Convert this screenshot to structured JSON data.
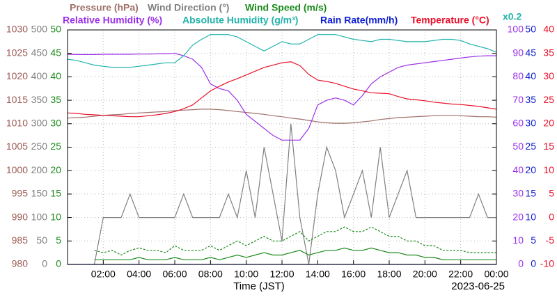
{
  "chart_data": {
    "type": "line",
    "xlabel": "Time (JST)",
    "date": "2023-06-25",
    "grid": true,
    "xlim": [
      0,
      24
    ],
    "xticks": [
      {
        "value": 2,
        "label": "02:00"
      },
      {
        "value": 4,
        "label": "04:00"
      },
      {
        "value": 6,
        "label": "06:00"
      },
      {
        "value": 8,
        "label": "08:00"
      },
      {
        "value": 10,
        "label": "10:00"
      },
      {
        "value": 12,
        "label": "12:00"
      },
      {
        "value": 14,
        "label": "14:00"
      },
      {
        "value": 16,
        "label": "16:00"
      },
      {
        "value": 18,
        "label": "18:00"
      },
      {
        "value": 20,
        "label": "20:00"
      },
      {
        "value": 22,
        "label": "22:00"
      },
      {
        "value": 24,
        "label": "00:00"
      }
    ],
    "x": [
      0,
      0.5,
      1,
      1.5,
      2,
      2.5,
      3,
      3.5,
      4,
      4.5,
      5,
      5.5,
      6,
      6.5,
      7,
      7.5,
      8,
      8.5,
      9,
      9.5,
      10,
      10.5,
      11,
      11.5,
      12,
      12.5,
      13,
      13.5,
      14,
      14.5,
      15,
      15.5,
      16,
      16.5,
      17,
      17.5,
      18,
      18.5,
      19,
      19.5,
      20,
      20.5,
      21,
      21.5,
      22,
      22.5,
      23,
      23.5,
      24
    ],
    "axes": [
      {
        "side": "left",
        "color": "#9c5b55",
        "lim": [
          980,
          1030
        ],
        "ticks": [
          980,
          985,
          990,
          995,
          1000,
          1005,
          1010,
          1015,
          1020,
          1025,
          1030
        ]
      },
      {
        "side": "left",
        "color": "#808080",
        "lim": [
          0,
          500
        ],
        "ticks": [
          0,
          50,
          100,
          150,
          200,
          250,
          300,
          350,
          400,
          450,
          500
        ]
      },
      {
        "side": "left",
        "color": "#1a8a1a",
        "lim": [
          0,
          50
        ],
        "ticks": [
          0,
          5,
          10,
          15,
          20,
          25,
          30,
          35,
          40,
          45,
          50
        ]
      },
      {
        "side": "right",
        "color": "#9b30e8",
        "lim": [
          0,
          100
        ],
        "ticks": [
          0,
          10,
          20,
          30,
          40,
          50,
          60,
          70,
          80,
          90,
          100
        ]
      },
      {
        "side": "right",
        "color": "#1020d0",
        "lim": [
          0,
          50
        ],
        "ticks": [
          0,
          5,
          10,
          15,
          20,
          25,
          30,
          35,
          40,
          45,
          50
        ]
      },
      {
        "side": "right",
        "color": "#e8102a",
        "lim": [
          -10,
          40
        ],
        "ticks": [
          -10,
          -5,
          0,
          5,
          10,
          15,
          20,
          25,
          30,
          35,
          40
        ]
      }
    ],
    "series": [
      {
        "name": "Pressure (hPa)",
        "axis": 0,
        "color": "#a0706a",
        "values": [
          1011.2,
          1011.3,
          1011.4,
          1011.6,
          1011.8,
          1011.9,
          1012.0,
          1012.2,
          1012.3,
          1012.4,
          1012.5,
          1012.6,
          1012.8,
          1012.9,
          1013.0,
          1013.1,
          1013.1,
          1013.0,
          1012.8,
          1012.6,
          1012.4,
          1012.2,
          1012.0,
          1011.7,
          1011.5,
          1011.2,
          1011.0,
          1010.7,
          1010.4,
          1010.2,
          1010.1,
          1010.1,
          1010.2,
          1010.4,
          1010.6,
          1010.9,
          1011.1,
          1011.3,
          1011.4,
          1011.5,
          1011.6,
          1011.7,
          1011.8,
          1011.8,
          1011.7,
          1011.6,
          1011.5,
          1011.5,
          1011.4
        ]
      },
      {
        "name": "Wind Direction (°)",
        "axis": 1,
        "color": "#808080",
        "values": [
          null,
          null,
          null,
          0,
          100,
          100,
          100,
          150,
          100,
          100,
          100,
          100,
          100,
          150,
          100,
          100,
          100,
          100,
          150,
          100,
          200,
          100,
          250,
          150,
          50,
          300,
          100,
          0,
          150,
          250,
          200,
          100,
          150,
          200,
          100,
          250,
          100,
          150,
          200,
          100,
          100,
          100,
          100,
          100,
          100,
          100,
          150,
          100,
          100
        ]
      },
      {
        "name": "Wind Speed (m/s)",
        "axis": 2,
        "color": "#1a8a1a",
        "values": [
          null,
          null,
          null,
          1,
          1,
          1,
          1,
          1,
          1.5,
          1,
          1,
          1,
          1.5,
          1,
          1,
          1,
          1.5,
          1,
          1.5,
          2,
          1.5,
          2,
          2.5,
          2,
          2,
          2.5,
          3,
          2,
          2.5,
          3,
          3,
          3.5,
          3,
          3,
          3.5,
          3,
          2.5,
          2.5,
          2,
          2,
          1.5,
          1.5,
          1,
          1,
          1,
          1,
          1,
          1,
          1
        ]
      },
      {
        "axis": 2,
        "color": "#1a8a1a",
        "dashed": true,
        "values": [
          null,
          null,
          null,
          3,
          2.5,
          3,
          2,
          3,
          3.5,
          3,
          3,
          2.5,
          4,
          3,
          3,
          3,
          4,
          3,
          4,
          5,
          4,
          5,
          6,
          5,
          5,
          6,
          7,
          5,
          6,
          7,
          7,
          8,
          7,
          7,
          8,
          7,
          6,
          6,
          5,
          5,
          4,
          4,
          3,
          3,
          3,
          2.5,
          2.5,
          2.5,
          2.5
        ]
      },
      {
        "name": "Relative Humidity (%)",
        "axis": 3,
        "color": "#9b30e8",
        "values": [
          89.6,
          89.5,
          89.5,
          89.5,
          89.6,
          89.6,
          89.6,
          89.6,
          89.7,
          89.7,
          89.8,
          89.8,
          90,
          89,
          87.5,
          84,
          77,
          75,
          74,
          70,
          64,
          61,
          58,
          55,
          53,
          53,
          53,
          58,
          68,
          70,
          71,
          70,
          68,
          72,
          77,
          80,
          82,
          84,
          85,
          85.5,
          86,
          86.5,
          87,
          87.5,
          88,
          88.5,
          88.8,
          89,
          89
        ]
      },
      {
        "name": "Absolute Humidity (g/m³)",
        "scale_label": "x0.2",
        "axis": 3,
        "color": "#20b2aa",
        "values": [
          87.5,
          87,
          86,
          85,
          84.5,
          84,
          84,
          84,
          84.5,
          85,
          85.5,
          86,
          86,
          89,
          93.5,
          96,
          98,
          98,
          98,
          97,
          95,
          93,
          91,
          93,
          95,
          94,
          94,
          96,
          98,
          98,
          98,
          97,
          96,
          95.5,
          95,
          96,
          96,
          95.5,
          95,
          95,
          95,
          95.5,
          96,
          96,
          95.5,
          94,
          93,
          92,
          90.5
        ]
      },
      {
        "name": "Rain Rate(mm/h)",
        "axis": 4,
        "color": "#1020d0",
        "values": [
          0,
          0,
          0,
          0,
          0,
          0,
          0,
          0,
          0,
          0,
          0,
          0,
          0,
          0,
          0,
          0,
          0,
          0,
          0,
          0,
          0,
          0,
          0,
          0,
          0,
          0,
          0,
          0,
          0,
          0,
          0,
          0,
          0,
          0,
          0,
          0,
          0,
          0,
          0,
          0,
          0,
          0,
          0,
          0,
          0,
          0,
          0,
          0,
          0
        ]
      },
      {
        "name": "Temperature (°C)",
        "axis": 5,
        "color": "#e8102a",
        "values": [
          22.3,
          22.2,
          22.0,
          21.9,
          21.8,
          21.7,
          21.6,
          21.5,
          21.5,
          21.7,
          21.9,
          22.2,
          22.6,
          23.2,
          24.0,
          25.5,
          27.0,
          28.0,
          28.9,
          29.6,
          30.4,
          31.2,
          32.0,
          32.5,
          33.0,
          33.2,
          32.4,
          30.5,
          29.3,
          29.0,
          28.6,
          28.0,
          27.4,
          27.0,
          26.6,
          26.5,
          26.4,
          25.8,
          25.3,
          25.1,
          24.9,
          24.6,
          24.4,
          24.2,
          24.1,
          23.9,
          23.7,
          23.4,
          23.1
        ]
      }
    ]
  }
}
